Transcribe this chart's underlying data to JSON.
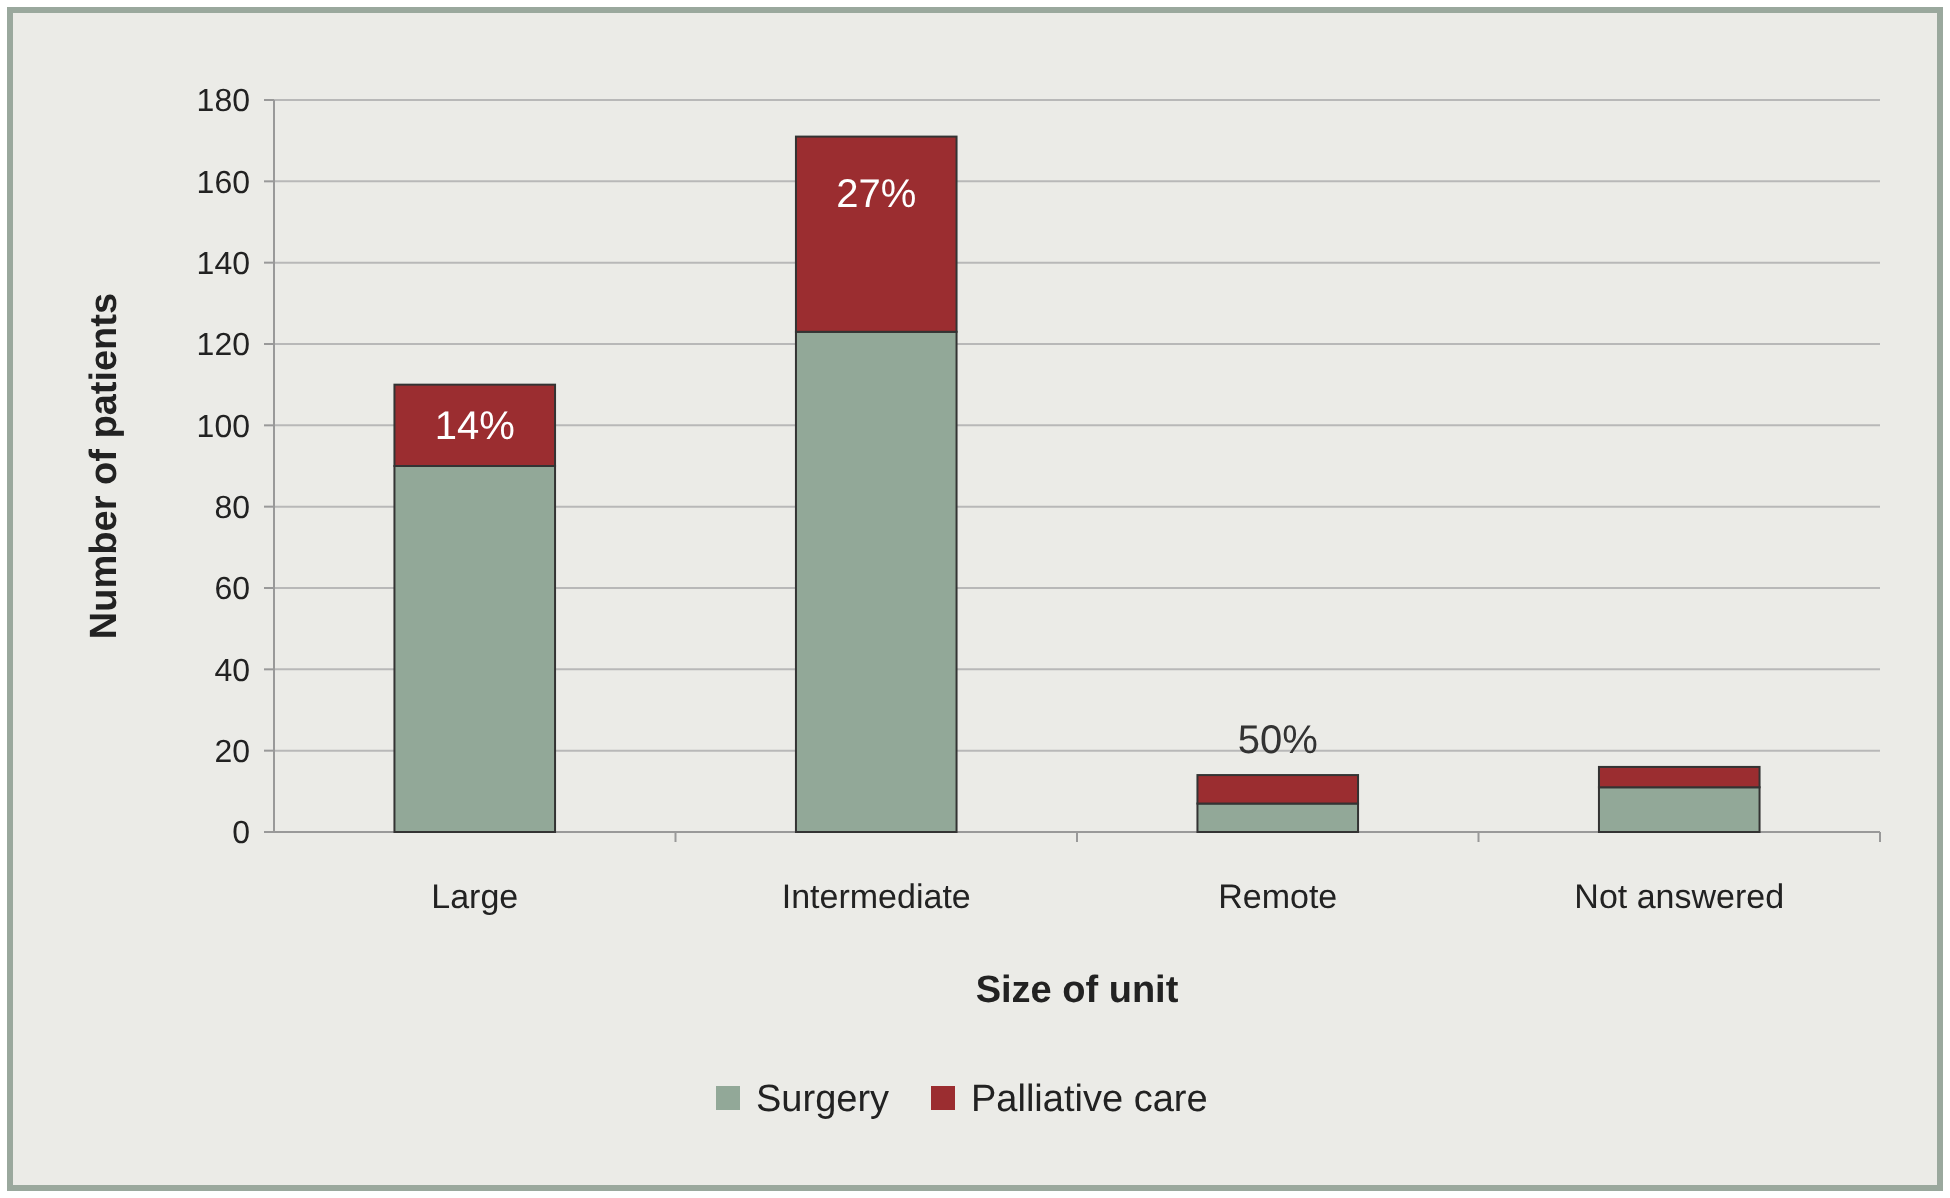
{
  "chart_data": {
    "type": "bar",
    "stacked": true,
    "xlabel": "Size of unit",
    "ylabel": "Number of patients",
    "categories": [
      "Large",
      "Intermediate",
      "Remote",
      "Not answered"
    ],
    "series": [
      {
        "name": "Surgery",
        "color": "#92a898",
        "values": [
          90,
          123,
          7,
          11
        ]
      },
      {
        "name": "Palliative care",
        "color": "#9b2d30",
        "values": [
          20,
          48,
          7,
          5
        ]
      }
    ],
    "ylim": [
      0,
      180
    ],
    "yticks": [
      0,
      20,
      40,
      60,
      80,
      100,
      120,
      140,
      160,
      180
    ],
    "grid": "y",
    "legend": "bottom",
    "annotations": [
      "14%",
      "27%",
      "50%"
    ]
  }
}
